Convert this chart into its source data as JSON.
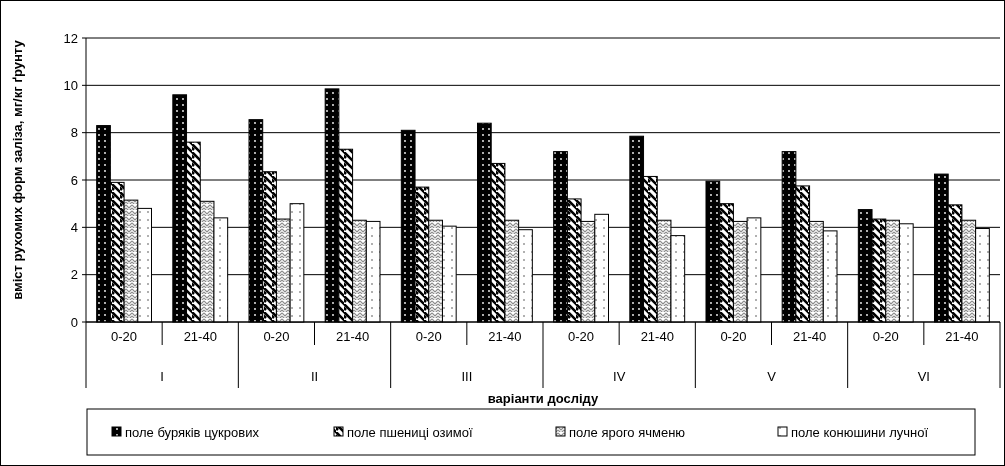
{
  "chart_data": {
    "type": "bar",
    "xlabel": "варіанти досліду",
    "ylabel": "вміст рухомих форм заліза, мг/кг ґрунту",
    "categories": [
      "0-20",
      "21-40",
      "0-20",
      "21-40",
      "0-20",
      "21-40",
      "0-20",
      "21-40",
      "0-20",
      "21-40",
      "0-20",
      "21-40"
    ],
    "annotations": [
      "I",
      "II",
      "III",
      "IV",
      "V",
      "VI"
    ],
    "series": [
      {
        "name": "поле буряків цукрових",
        "color": "#000000",
        "values": [
          8.3,
          9.6,
          8.55,
          9.85,
          8.1,
          8.4,
          7.2,
          7.85,
          5.95,
          7.2,
          4.75,
          6.25
        ]
      },
      {
        "name": "поле пшениці озимої",
        "color": "#000000",
        "values": [
          5.9,
          7.6,
          6.35,
          7.3,
          5.7,
          6.7,
          5.2,
          6.15,
          5.0,
          5.75,
          4.35,
          4.95
        ]
      },
      {
        "name": "поле ярого ячменю",
        "color": "#000000",
        "values": [
          5.15,
          5.1,
          4.35,
          4.3,
          4.3,
          4.3,
          4.25,
          4.3,
          4.25,
          4.25,
          4.3,
          4.3
        ]
      },
      {
        "name": "поле конюшини лучної",
        "color": "#000000",
        "values": [
          4.8,
          4.4,
          5.0,
          4.25,
          4.05,
          3.9,
          4.55,
          3.65,
          4.4,
          3.85,
          4.15,
          3.95
        ]
      }
    ],
    "ylim": [
      0,
      12
    ],
    "yticks": [
      0,
      2,
      4,
      6,
      8,
      10,
      12
    ],
    "grid": "y",
    "legend": "bottom"
  }
}
